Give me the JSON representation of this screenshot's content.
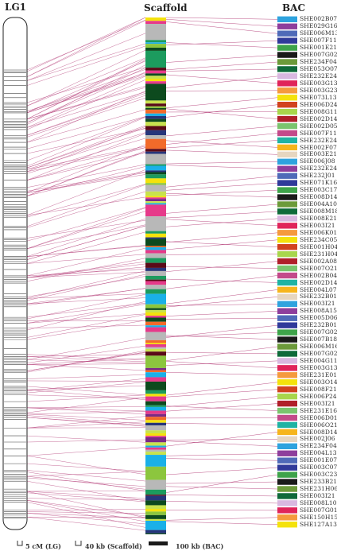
{
  "headers": {
    "lg": "LG1",
    "scaffold": "Scaffold",
    "bac": "BAC"
  },
  "legend": {
    "lg": "5 cM (LG)",
    "scaffold": "40 kb (Scaffold)",
    "bac": "100 kb (BAC)"
  },
  "bac_labels": [
    "SHE002B07",
    "SHE029G16",
    "SHE006M13",
    "SHE007F11",
    "SHE001E21",
    "SHE007G02",
    "SHE234F04",
    "SHE053O07",
    "SHE232E24",
    "SHE003G13",
    "SHE003G23",
    "SHE073L13",
    "SHE006D24",
    "SHE008G11",
    "SHE002D14",
    "SHE002D05",
    "SHE007F11",
    "SHE232E24",
    "SHE002F07",
    "SHE003E21",
    "SHE006J08",
    "SHE232E24",
    "SHE232J01",
    "SHE071K16",
    "SHE003C17",
    "SHE008D14",
    "SHE004A10",
    "SHE008M18",
    "SHE008E21",
    "SHE003I21",
    "SHE006K01",
    "SHE234C05",
    "SHE001H04",
    "SHE231H04",
    "SHE002A08",
    "SHE007O21",
    "SHE002B04",
    "SHE002D14",
    "SHE004L07",
    "SHE232B01",
    "SHE003I21",
    "SHE008A15",
    "SHE005D06",
    "SHE232B01",
    "SHE007G02",
    "SHE007B18",
    "SHE006M16",
    "SHE007G02",
    "SHE004G11",
    "SHE003G13",
    "SHE231E01",
    "SHE003O14",
    "SHE008F21",
    "SHE006P24",
    "SHE003I21",
    "SHE231E16",
    "SHE006D01",
    "SHE006O21",
    "SHE008D14",
    "SHE002J06",
    "SHE234F04",
    "SHE004L13",
    "SHE001E07",
    "SHE003C07",
    "SHE003C23",
    "SHE233B21",
    "SHE231H06",
    "SHE003I21",
    "SHE008L10",
    "SHE007G01",
    "SHE150H15",
    "SHE127A13"
  ],
  "colors": {
    "link": "#b5417a",
    "bac_palette": [
      "#f4e20c",
      "#b01f2a",
      "#1fb3a3",
      "#2ea3de",
      "#303a9a",
      "#6c9a3a",
      "#e0245a",
      "#d1431f",
      "#7ac46e",
      "#f6b51c",
      "#8e3e9c",
      "#3ea34a",
      "#0f6a3a",
      "#f59a3e",
      "#a8d64c",
      "#c34a8a",
      "#e6d6c0",
      "#4f6ab8",
      "#1a1a1a",
      "#d9b8e0"
    ],
    "scaffold_palette": [
      "#f4e20c",
      "#1ab0e8",
      "#5a0a18",
      "#f8cfa8",
      "#2a8a4a",
      "#8cc63e",
      "#e63a8a",
      "#26357a",
      "#d42a2a",
      "#6acfd8",
      "#0d4a1e",
      "#b8b8b8",
      "#7a2a86",
      "#e8a41e",
      "#3a6fc6",
      "#c8e24e",
      "#f26a2a",
      "#1c9b5e",
      "#e0e0a0",
      "#9b1b3c"
    ]
  }
}
